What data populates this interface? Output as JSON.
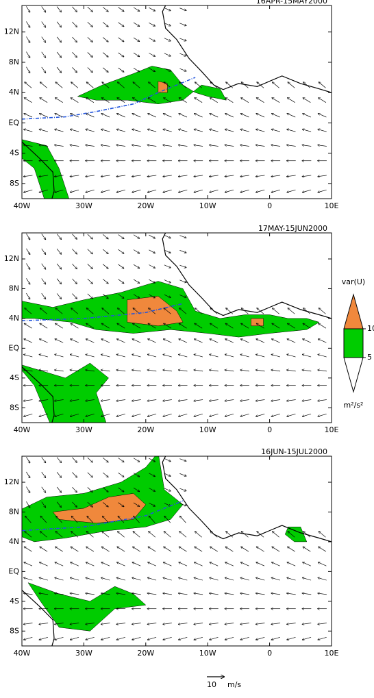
{
  "panels": [
    {
      "title": "16APR-15MAY2000",
      "trough": {
        "color": "#2255dd",
        "lon": [
          -40,
          -33,
          -28,
          -22,
          -18,
          -12
        ],
        "lat": [
          0.5,
          0.8,
          1.5,
          2.5,
          4,
          6
        ]
      }
    },
    {
      "title": "17MAY-15JUN2000",
      "trough": {
        "color": "#2255dd",
        "lon": [
          -40,
          -30,
          -20,
          -14
        ],
        "lat": [
          3.7,
          4,
          4.8,
          6
        ]
      }
    },
    {
      "title": "16JUN-15JUL2000",
      "trough": {
        "color": "#2255dd",
        "lon": [
          -40,
          -30,
          -20,
          -14
        ],
        "lat": [
          5.5,
          6,
          7.5,
          9.5
        ]
      }
    }
  ],
  "axes": {
    "lonlim": [
      -40,
      10
    ],
    "latlim": [
      -10,
      15.5
    ],
    "lon_ticks": [
      {
        "value": -40,
        "label": "40W"
      },
      {
        "value": -30,
        "label": "30W"
      },
      {
        "value": -20,
        "label": "20W"
      },
      {
        "value": -10,
        "label": "10W"
      },
      0,
      {
        "value": 10,
        "label": "10E"
      }
    ],
    "lat_ticks": [
      {
        "value": 12,
        "label": "12N"
      },
      {
        "value": 8,
        "label": "8N"
      },
      {
        "value": 4,
        "label": "4N"
      },
      {
        "value": 0,
        "label": "EQ"
      },
      {
        "value": -4,
        "label": "4S"
      },
      {
        "value": -8,
        "label": "8S"
      }
    ]
  },
  "colorbar": {
    "label": "var(U)",
    "ticks": [
      10,
      5
    ],
    "unit": "m²/s²",
    "high_color": "#f0883c",
    "mid_color": "#00cc00",
    "low_color": "#ffffff"
  },
  "reference_vector": {
    "value": 10,
    "unit": "m/s"
  }
}
